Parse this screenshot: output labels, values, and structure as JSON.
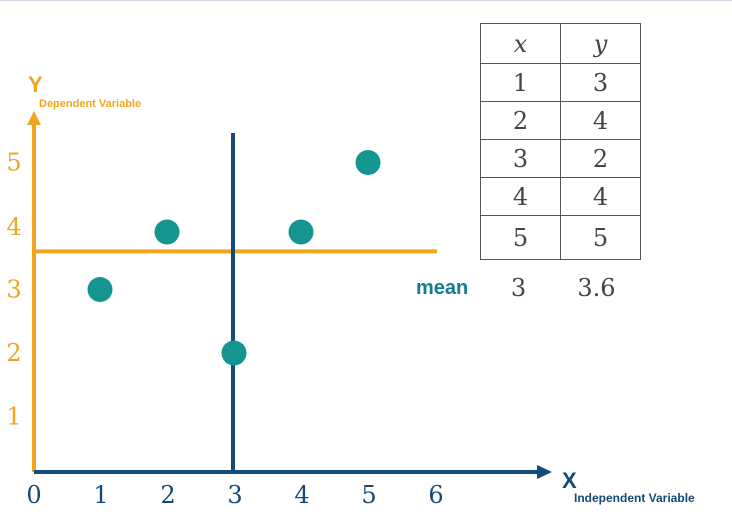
{
  "chart_data": {
    "type": "scatter",
    "points": [
      {
        "x": 1,
        "y": 3
      },
      {
        "x": 2,
        "y": 4
      },
      {
        "x": 3,
        "y": 2
      },
      {
        "x": 4,
        "y": 4
      },
      {
        "x": 5,
        "y": 5
      }
    ],
    "xlabel": "X",
    "xlabel_sub": "Independent Variable",
    "ylabel": "Y",
    "ylabel_sub": "Dependent Variable",
    "x_ticks": [
      "0",
      "1",
      "2",
      "3",
      "4",
      "5",
      "6"
    ],
    "y_ticks": [
      "1",
      "2",
      "3",
      "4",
      "5"
    ],
    "xlim": [
      0,
      6
    ],
    "mean_x": 3,
    "mean_y": 3.6,
    "grid": false,
    "colors": {
      "point": "#14958f",
      "y_axis_and_mean_y_line": "#f0a51f",
      "x_axis_and_mean_x_line": "#134a78",
      "mean_label": "#117d8e"
    }
  },
  "table": {
    "headers": [
      "x",
      "y"
    ],
    "rows": [
      [
        "1",
        "3"
      ],
      [
        "2",
        "4"
      ],
      [
        "3",
        "2"
      ],
      [
        "4",
        "4"
      ],
      [
        "5",
        "5"
      ]
    ],
    "mean_label": "mean",
    "mean_values": [
      "3",
      "3.6"
    ]
  }
}
